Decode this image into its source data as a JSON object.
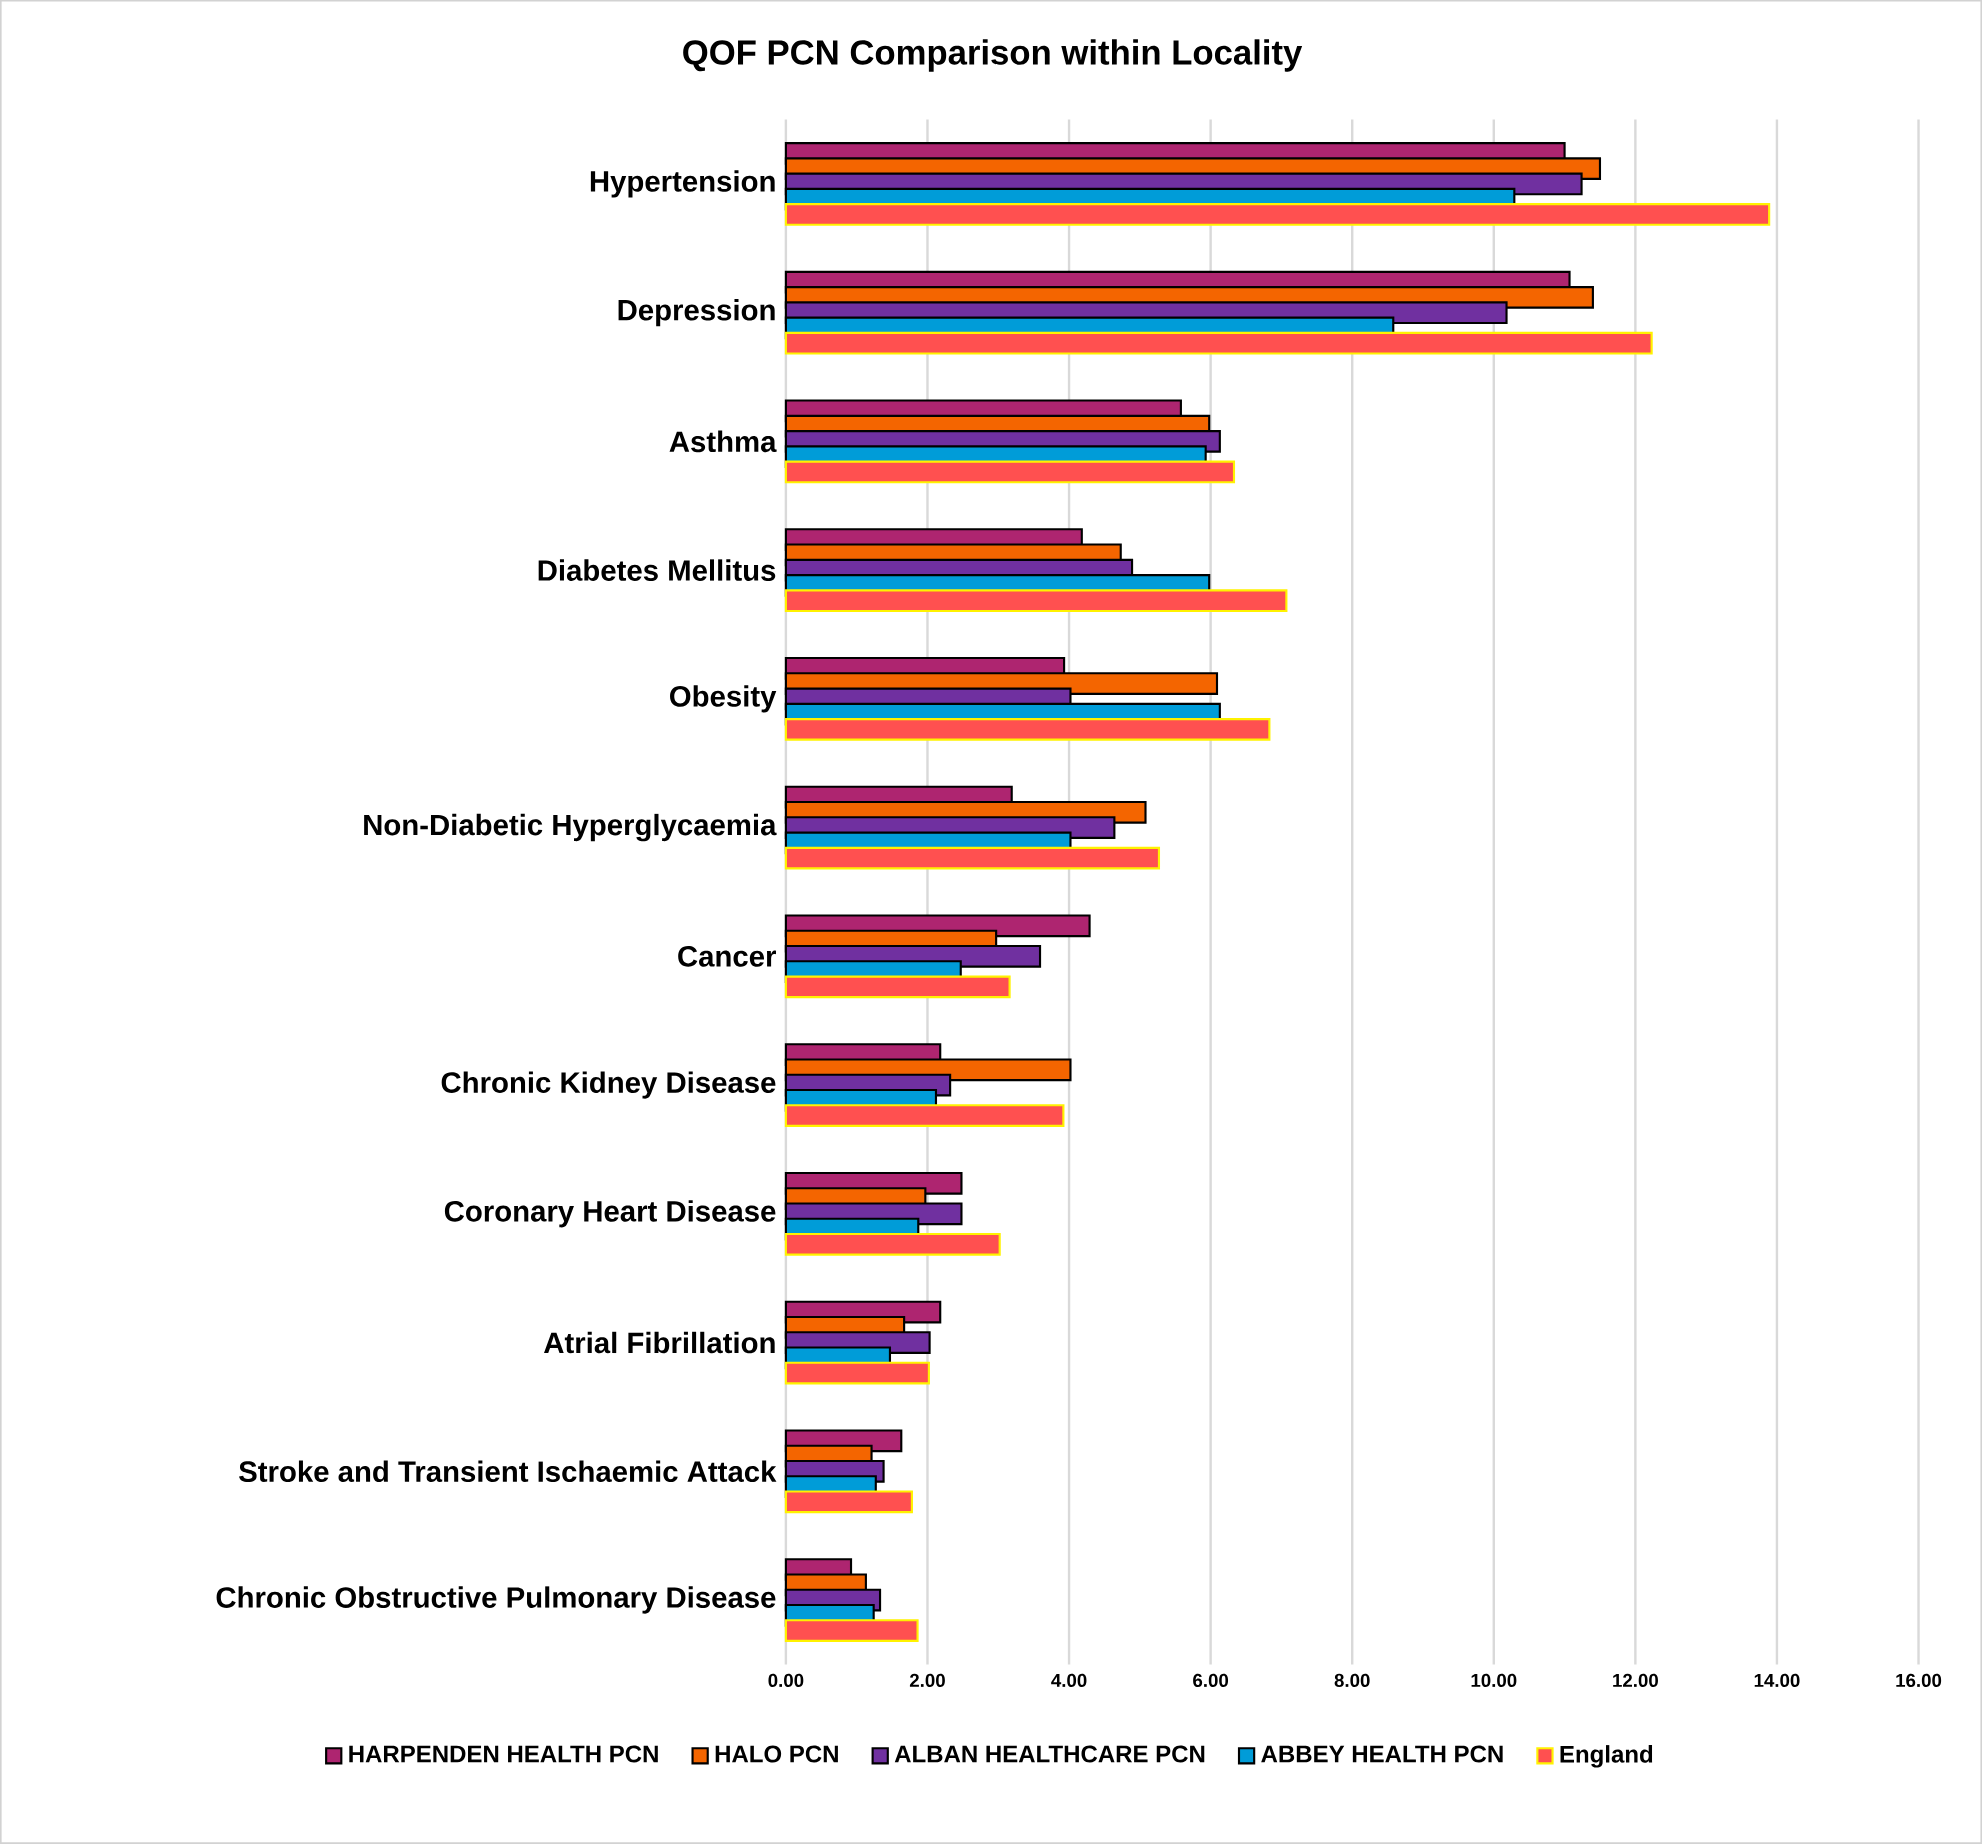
{
  "chart_data": {
    "type": "bar",
    "orientation": "horizontal",
    "title": "QOF PCN Comparison within Locality",
    "categories": [
      "Hypertension",
      "Depression",
      "Asthma",
      "Diabetes Mellitus",
      "Obesity",
      "Non-Diabetic Hyperglycaemia",
      "Cancer",
      "Chronic Kidney Disease",
      "Coronary Heart Disease",
      "Atrial Fibrillation",
      "Stroke and Transient Ischaemic Attack",
      "Chronic Obstructive Pulmonary Disease"
    ],
    "series": [
      {
        "name": "HARPENDEN HEALTH PCN",
        "color": "#ae2570",
        "values": [
          11.0,
          11.07,
          5.58,
          4.18,
          3.93,
          3.19,
          4.29,
          2.18,
          2.48,
          2.18,
          1.63,
          0.92
        ]
      },
      {
        "name": "HALO PCN",
        "color": "#f46500",
        "values": [
          11.5,
          11.4,
          5.98,
          4.73,
          6.09,
          5.08,
          2.97,
          4.02,
          1.97,
          1.67,
          1.21,
          1.13
        ]
      },
      {
        "name": "ALBAN HEALTHCARE PCN",
        "color": "#7030a0",
        "values": [
          11.24,
          10.18,
          6.13,
          4.89,
          4.02,
          4.64,
          3.59,
          2.32,
          2.48,
          2.03,
          1.38,
          1.33
        ]
      },
      {
        "name": "ABBEY HEALTH PCN",
        "color": "#009cd8",
        "values": [
          10.29,
          8.58,
          5.93,
          5.98,
          6.13,
          4.02,
          2.47,
          2.12,
          1.87,
          1.47,
          1.27,
          1.24
        ]
      },
      {
        "name": "England",
        "color": "#ff5050",
        "values": [
          13.89,
          12.23,
          6.33,
          7.07,
          6.83,
          5.27,
          3.16,
          3.92,
          3.02,
          2.02,
          1.78,
          1.86
        ]
      }
    ],
    "xlim": [
      0,
      16
    ],
    "xticks": [
      {
        "value": 0,
        "label": "0.00"
      },
      {
        "value": 2,
        "label": "2.00"
      },
      {
        "value": 4,
        "label": "4.00"
      },
      {
        "value": 6,
        "label": "6.00"
      },
      {
        "value": 8,
        "label": "8.00"
      },
      {
        "value": 10,
        "label": "10.00"
      },
      {
        "value": 12,
        "label": "12.00"
      },
      {
        "value": 14,
        "label": "14.00"
      },
      {
        "value": 16,
        "label": "16.00"
      }
    ],
    "grid": "x",
    "legend": "bottom"
  }
}
